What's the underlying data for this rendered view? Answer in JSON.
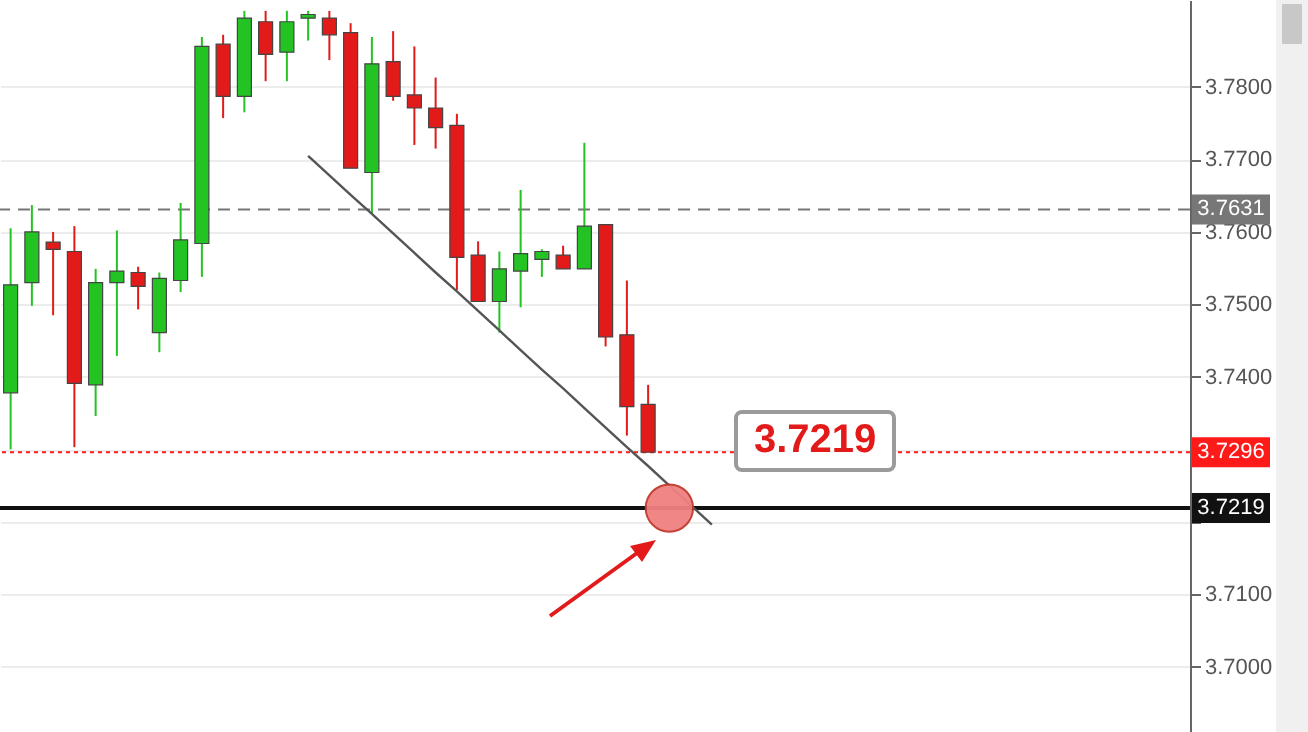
{
  "chart_data": {
    "type": "candlestick",
    "categories": [
      null,
      null,
      null,
      null,
      null,
      null,
      null,
      null,
      null,
      null,
      null,
      null,
      null,
      null,
      null,
      null,
      null,
      null,
      null,
      null,
      null,
      null,
      null,
      null,
      null,
      null,
      null,
      null,
      null,
      null,
      null,
      null,
      null,
      null,
      null,
      null,
      null,
      null,
      null,
      null,
      null,
      null,
      null,
      null,
      null,
      null,
      null,
      null,
      null,
      null,
      null,
      null,
      null,
      null,
      null,
      null
    ],
    "ohlc": [
      [
        3.7378,
        3.7605,
        3.73,
        3.7527
      ],
      [
        3.753,
        3.7637,
        3.7498,
        3.76
      ],
      [
        3.7586,
        3.76,
        3.7485,
        3.7576
      ],
      [
        3.7573,
        3.7608,
        3.7303,
        3.7391
      ],
      [
        3.7389,
        3.7549,
        3.7346,
        3.753
      ],
      [
        3.753,
        3.7602,
        3.7429,
        3.7546
      ],
      [
        3.7544,
        3.7552,
        3.7493,
        3.7525
      ],
      [
        3.7461,
        3.7544,
        3.7434,
        3.7536
      ],
      [
        3.7533,
        3.764,
        3.7517,
        3.7589
      ],
      [
        3.7584,
        3.7869,
        3.7538,
        3.7856
      ],
      [
        3.7859,
        3.7872,
        3.7757,
        3.7787
      ],
      [
        3.7787,
        3.7905,
        3.7765,
        3.7895
      ],
      [
        3.789,
        3.7905,
        3.7808,
        3.7845
      ],
      [
        3.7848,
        3.7905,
        3.7808,
        3.789
      ],
      [
        3.7895,
        3.7905,
        3.7864,
        3.79
      ],
      [
        3.7895,
        3.7905,
        3.7837,
        3.7872
      ],
      [
        3.7875,
        3.7888,
        3.7688,
        3.7688
      ],
      [
        3.7682,
        3.7869,
        3.7626,
        3.7832
      ],
      [
        3.7835,
        3.7877,
        3.7781,
        3.7787
      ],
      [
        3.7789,
        3.7856,
        3.772,
        3.7771
      ],
      [
        3.7771,
        3.7813,
        3.7715,
        3.7744
      ],
      [
        3.7747,
        3.7763,
        3.752,
        3.7565
      ],
      [
        3.7568,
        3.7587,
        3.7504,
        3.7504
      ],
      [
        3.7504,
        3.7573,
        3.7461,
        3.7549
      ],
      [
        3.7546,
        3.7658,
        3.7496,
        3.757
      ],
      [
        3.7562,
        3.7576,
        3.7538,
        3.7573
      ],
      [
        3.7568,
        3.7581,
        3.7549,
        3.7549
      ],
      [
        3.7549,
        3.7723,
        3.7549,
        3.7608
      ],
      [
        3.761,
        3.761,
        3.7442,
        3.7455
      ],
      [
        3.7458,
        3.7533,
        3.7319,
        3.7359
      ],
      [
        3.7362,
        3.7389,
        3.7296,
        3.7296
      ],
      null,
      null,
      null,
      null,
      null,
      null,
      null,
      null,
      null,
      null,
      null,
      null,
      null,
      null,
      null,
      null,
      null,
      null,
      null,
      null,
      null,
      null,
      null,
      null,
      null
    ],
    "colors": [
      "#22c322",
      "#22c322",
      "#e21a1a",
      "#e21a1a",
      "#22c322",
      "#22c322",
      "#e21a1a",
      "#22c322",
      "#22c322",
      "#22c322",
      "#e21a1a",
      "#22c322",
      "#e21a1a",
      "#22c322",
      "#22c322",
      "#e21a1a",
      "#e21a1a",
      "#22c322",
      "#e21a1a",
      "#e21a1a",
      "#e21a1a",
      "#e21a1a",
      "#e21a1a",
      "#22c322",
      "#22c322",
      "#22c322",
      "#e21a1a",
      "#22c322",
      "#e21a1a",
      "#e21a1a",
      "#e21a1a",
      null,
      null,
      null,
      null,
      null,
      null,
      null,
      null,
      null,
      null,
      null,
      null,
      null,
      null,
      null,
      null,
      null,
      null,
      null,
      null,
      null,
      null,
      null,
      null,
      null
    ],
    "series": [
      {
        "type": "line",
        "color": "#555555",
        "values": [
          null,
          null,
          null,
          null,
          null,
          null,
          null,
          null,
          null,
          null,
          null,
          null,
          null,
          null,
          3.7705,
          3.7678,
          3.7651,
          3.7625,
          3.7598,
          3.7571,
          3.7544,
          3.7518,
          3.7491,
          3.7464,
          3.7437,
          3.741,
          3.7384,
          3.7357,
          3.733,
          3.7303,
          3.7277,
          3.725,
          3.7223,
          3.7196,
          null,
          null,
          null,
          null,
          null,
          null,
          null,
          null,
          null,
          null,
          null,
          null,
          null,
          null,
          null,
          null,
          null,
          null,
          null,
          null,
          null,
          null
        ]
      },
      {
        "type": "scatter",
        "color": "#f08080",
        "marker": "circle",
        "values": [
          null,
          null,
          null,
          null,
          null,
          null,
          null,
          null,
          null,
          null,
          null,
          null,
          null,
          null,
          null,
          null,
          null,
          null,
          null,
          null,
          null,
          null,
          null,
          null,
          null,
          null,
          null,
          null,
          null,
          null,
          null,
          3.7219,
          null,
          null,
          null,
          null,
          null,
          null,
          null,
          null,
          null,
          null,
          null,
          null,
          null,
          null,
          null,
          null,
          null,
          null,
          null,
          null,
          null,
          null,
          null,
          null
        ]
      }
    ],
    "ylim": [
      3.691,
      3.792
    ],
    "yticks": [
      {
        "value": 3.7,
        "label": "3.7000"
      },
      {
        "value": 3.71,
        "label": "3.7100"
      },
      {
        "value": 3.72,
        "label": null
      },
      {
        "value": 3.73,
        "label": null
      },
      {
        "value": 3.74,
        "label": "3.7400"
      },
      {
        "value": 3.75,
        "label": "3.7500"
      },
      {
        "value": 3.76,
        "label": "3.7600"
      },
      {
        "value": 3.77,
        "label": "3.7700"
      },
      {
        "value": 3.78,
        "label": "3.7800"
      }
    ],
    "grid": "y",
    "tick_labels": "y",
    "ref_lines": [
      {
        "axis": "y",
        "value": 3.7631,
        "label": "3.7631",
        "color": "#777777",
        "line_style": "dashed"
      },
      {
        "axis": "y",
        "value": 3.7296,
        "label": "3.7296",
        "color": "#ff1a1a",
        "line_style": "dotted"
      },
      {
        "axis": "y",
        "value": 3.7219,
        "label": "3.7219",
        "color": "#111111",
        "line_style": "solid"
      }
    ],
    "annotations": [
      "3.7219"
    ]
  }
}
